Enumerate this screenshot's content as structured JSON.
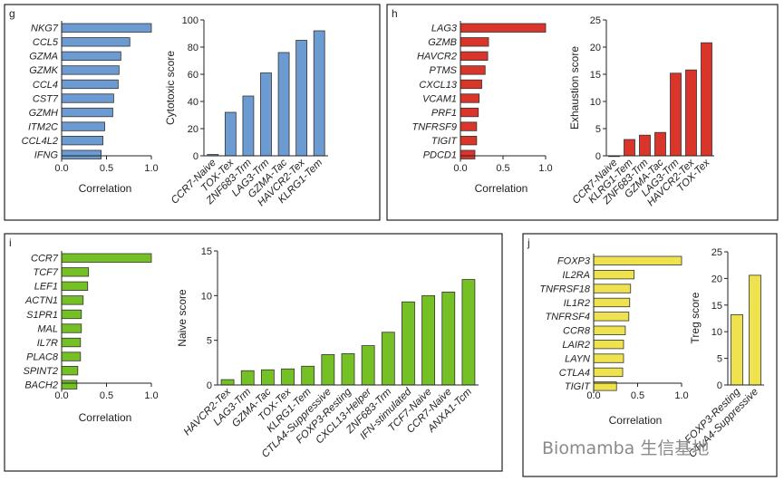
{
  "watermark": "Biomamba 生信基地",
  "chart_data": [
    {
      "panel": "g",
      "color": "#6b9bd1",
      "bar": {
        "type": "bar",
        "orientation": "horizontal",
        "xlabel": "Correlation",
        "xlim": [
          0,
          1
        ],
        "ticks": [
          "0.0",
          "0.5",
          "1.0"
        ],
        "categories": [
          "NKG7",
          "CCL5",
          "GZMA",
          "GZMK",
          "CCL4",
          "CST7",
          "GZMH",
          "ITM2C",
          "CCL4L2",
          "IFNG"
        ],
        "values": [
          1.0,
          0.76,
          0.66,
          0.64,
          0.63,
          0.58,
          0.57,
          0.48,
          0.46,
          0.44
        ]
      },
      "score": {
        "type": "bar",
        "ylabel": "Cytotoxic score",
        "ylim": [
          0,
          100
        ],
        "ticks": [
          "0",
          "20",
          "40",
          "60",
          "80",
          "100"
        ],
        "categories": [
          "CCR7-Naive",
          "TOX-Tex",
          "ZNF683-Trm",
          "LAG3-Trm",
          "GZMA-Tac",
          "HAVCR2-Tex",
          "KLRG1-Tem"
        ],
        "values": [
          1,
          32,
          44,
          61,
          76,
          85,
          92
        ]
      }
    },
    {
      "panel": "h",
      "color": "#d9352a",
      "bar": {
        "type": "bar",
        "orientation": "horizontal",
        "xlabel": "Correlation",
        "xlim": [
          0,
          1
        ],
        "ticks": [
          "0.0",
          "0.5",
          "1.0"
        ],
        "categories": [
          "LAG3",
          "GZMB",
          "HAVCR2",
          "PTMS",
          "CXCL13",
          "VCAM1",
          "PRF1",
          "TNFRSF9",
          "TIGIT",
          "PDCD1"
        ],
        "values": [
          1.0,
          0.33,
          0.32,
          0.29,
          0.25,
          0.22,
          0.21,
          0.19,
          0.19,
          0.17
        ]
      },
      "score": {
        "type": "bar",
        "ylabel": "Exhaustion score",
        "ylim": [
          0,
          25
        ],
        "ticks": [
          "0",
          "5",
          "10",
          "15",
          "20",
          "25"
        ],
        "categories": [
          "CCR7-Naive",
          "KLRG1-Tem",
          "ZNF683-Trm",
          "GZMA-Tac",
          "LAG3-Trm",
          "HAVCR2-Tex",
          "TOX-Tex"
        ],
        "values": [
          0,
          3,
          3.8,
          4.3,
          15.2,
          15.8,
          20.8
        ]
      }
    },
    {
      "panel": "i",
      "color": "#74c025",
      "bar": {
        "type": "bar",
        "orientation": "horizontal",
        "xlabel": "Correlation",
        "xlim": [
          0,
          1
        ],
        "ticks": [
          "0.0",
          "0.5",
          "1.0"
        ],
        "categories": [
          "CCR7",
          "TCF7",
          "LEF1",
          "ACTN1",
          "S1PR1",
          "MAL",
          "IL7R",
          "PLAC8",
          "SPINT2",
          "BACH2"
        ],
        "values": [
          1.0,
          0.3,
          0.29,
          0.24,
          0.22,
          0.22,
          0.21,
          0.21,
          0.18,
          0.17
        ]
      },
      "score": {
        "type": "bar",
        "ylabel": "Naive score",
        "ylim": [
          0,
          15
        ],
        "ticks": [
          "0",
          "5",
          "10",
          "15"
        ],
        "categories": [
          "HAVCR2-Tex",
          "LAG3-Trm",
          "GZMA-Tac",
          "TOX-Tex",
          "KLRG1-Tem",
          "CTLA4-Suppressive",
          "FOXP3-Resting",
          "CXCL13-Helper",
          "ZNF683-Trm",
          "IFN-stimulated",
          "TCF7-Naive",
          "CCR7-Naive",
          "ANXA1-Tcm"
        ],
        "values": [
          0.6,
          1.6,
          1.7,
          1.8,
          2.1,
          3.4,
          3.5,
          4.4,
          5.9,
          9.3,
          10.0,
          10.4,
          11.8
        ]
      }
    },
    {
      "panel": "j",
      "color": "#efe24f",
      "bar": {
        "type": "bar",
        "orientation": "horizontal",
        "xlabel": "Correlation",
        "xlim": [
          0,
          1
        ],
        "ticks": [
          "0.0",
          "0.5",
          "1.0"
        ],
        "categories": [
          "FOXP3",
          "IL2RA",
          "TNFRSF18",
          "IL1R2",
          "TNFRSF4",
          "CCR8",
          "LAIR2",
          "LAYN",
          "CTLA4",
          "TIGIT"
        ],
        "values": [
          1.0,
          0.46,
          0.42,
          0.41,
          0.4,
          0.36,
          0.34,
          0.34,
          0.33,
          0.26
        ]
      },
      "score": {
        "type": "bar",
        "ylabel": "Treg score",
        "ylim": [
          0,
          25
        ],
        "ticks": [
          "0",
          "5",
          "10",
          "15",
          "20",
          "25"
        ],
        "categories": [
          "FOXP3-Resting",
          "CTLA4-Suppressive"
        ],
        "values": [
          13.2,
          20.6
        ]
      }
    }
  ]
}
